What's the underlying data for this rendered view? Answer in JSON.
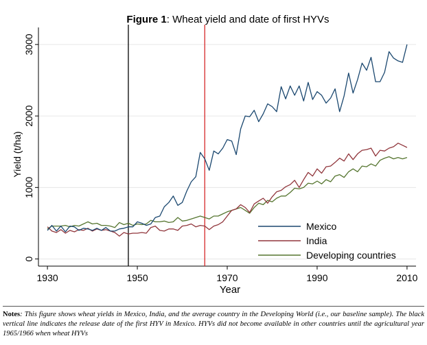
{
  "figure": {
    "title_bold": "Figure 1",
    "title_rest": ": Wheat yield and date of first HYVs"
  },
  "notes": {
    "label": "Notes",
    "text": ": This figure shows wheat yields in Mexico, India, and the average country in the Developing World (i.e., our baseline sample). The black vertical line indicates the release date of the first HYV in Mexico. HYVs did not become available in other countries until the agricultural year 1965/1966 when wheat HYVs"
  },
  "chart_data": {
    "type": "line",
    "title": "Figure 1: Wheat yield and date of first HYVs",
    "xlabel": "Year",
    "ylabel": "Yield (t/ha)",
    "xlim": [
      1928,
      2012
    ],
    "ylim": [
      -100,
      3200
    ],
    "xticks": [
      1930,
      1950,
      1970,
      1990,
      2010
    ],
    "yticks": [
      0,
      1000,
      2000,
      3000
    ],
    "grid": true,
    "legend_position": "bottom-right",
    "vlines": [
      {
        "x": 1948,
        "color": "#000000"
      },
      {
        "x": 1965,
        "color": "#d62728"
      }
    ],
    "x": [
      1930,
      1931,
      1932,
      1933,
      1934,
      1935,
      1936,
      1937,
      1938,
      1939,
      1940,
      1941,
      1942,
      1943,
      1944,
      1945,
      1946,
      1947,
      1948,
      1949,
      1950,
      1951,
      1952,
      1953,
      1954,
      1955,
      1956,
      1957,
      1958,
      1959,
      1960,
      1961,
      1962,
      1963,
      1964,
      1965,
      1966,
      1967,
      1968,
      1969,
      1970,
      1971,
      1972,
      1973,
      1974,
      1975,
      1976,
      1977,
      1978,
      1979,
      1980,
      1981,
      1982,
      1983,
      1984,
      1985,
      1986,
      1987,
      1988,
      1989,
      1990,
      1991,
      1992,
      1993,
      1994,
      1995,
      1996,
      1997,
      1998,
      1999,
      2000,
      2001,
      2002,
      2003,
      2004,
      2005,
      2006,
      2007,
      2008,
      2009,
      2010
    ],
    "series": [
      {
        "name": "Mexico",
        "color": "#1a476f",
        "values": [
          400,
          470,
          390,
          460,
          380,
          460,
          450,
          400,
          430,
          420,
          400,
          430,
          400,
          440,
          390,
          390,
          420,
          430,
          450,
          450,
          520,
          500,
          470,
          490,
          580,
          600,
          730,
          790,
          880,
          750,
          790,
          950,
          1080,
          1150,
          1490,
          1400,
          1240,
          1510,
          1470,
          1550,
          1670,
          1650,
          1460,
          1820,
          2000,
          1990,
          2080,
          1920,
          2030,
          2170,
          2130,
          2060,
          2410,
          2240,
          2420,
          2290,
          2420,
          2210,
          2470,
          2230,
          2340,
          2290,
          2180,
          2250,
          2380,
          2060,
          2280,
          2600,
          2320,
          2510,
          2740,
          2640,
          2820,
          2480,
          2480,
          2610,
          2900,
          2810,
          2770,
          2750,
          3000
        ]
      },
      {
        "name": "India",
        "color": "#90353b",
        "values": [
          450,
          390,
          370,
          410,
          360,
          400,
          380,
          410,
          400,
          430,
          390,
          420,
          400,
          410,
          390,
          370,
          320,
          370,
          350,
          360,
          360,
          370,
          360,
          440,
          460,
          400,
          390,
          420,
          420,
          400,
          460,
          470,
          490,
          450,
          470,
          460,
          410,
          460,
          480,
          520,
          600,
          680,
          700,
          760,
          720,
          650,
          770,
          810,
          850,
          780,
          870,
          940,
          960,
          1010,
          1040,
          1100,
          1000,
          1110,
          1210,
          1160,
          1260,
          1200,
          1290,
          1300,
          1350,
          1410,
          1370,
          1470,
          1390,
          1470,
          1520,
          1530,
          1550,
          1440,
          1520,
          1510,
          1550,
          1570,
          1620,
          1590,
          1560
        ]
      },
      {
        "name": "Developing countries",
        "color": "#55752f",
        "values": [
          420,
          460,
          460,
          460,
          470,
          450,
          470,
          460,
          490,
          520,
          490,
          500,
          470,
          470,
          460,
          440,
          510,
          480,
          500,
          470,
          490,
          480,
          490,
          540,
          520,
          520,
          530,
          510,
          520,
          580,
          530,
          540,
          560,
          580,
          600,
          580,
          560,
          600,
          600,
          630,
          660,
          680,
          700,
          720,
          680,
          640,
          720,
          780,
          760,
          820,
          800,
          850,
          880,
          880,
          930,
          990,
          980,
          1000,
          1060,
          1050,
          1090,
          1050,
          1110,
          1080,
          1160,
          1180,
          1140,
          1220,
          1260,
          1220,
          1300,
          1290,
          1330,
          1300,
          1380,
          1410,
          1430,
          1400,
          1420,
          1400,
          1420
        ]
      }
    ]
  }
}
